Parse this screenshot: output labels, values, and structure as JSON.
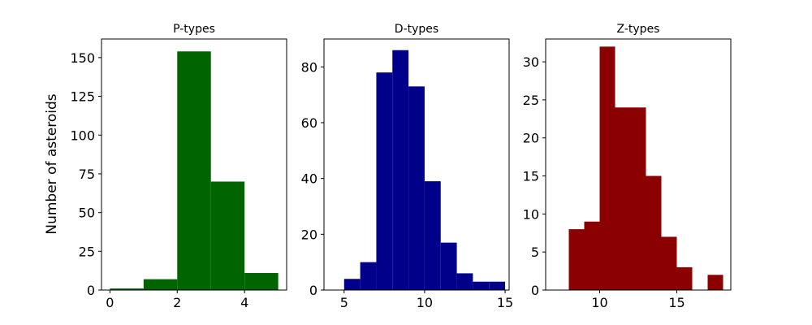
{
  "figure": {
    "ylabel": "Number of asteroids"
  },
  "chart_data": [
    {
      "type": "bar",
      "title": "P-types",
      "xlabel": "",
      "ylabel": "Number of asteroids",
      "color": "#006400",
      "xlim": [
        -0.25,
        5.25
      ],
      "ylim": [
        0,
        162
      ],
      "xticks": [
        0,
        2,
        4
      ],
      "yticks": [
        0,
        25,
        50,
        75,
        100,
        125,
        150
      ],
      "bins": [
        {
          "x0": 0,
          "x1": 1,
          "value": 1
        },
        {
          "x0": 1,
          "x1": 2,
          "value": 7
        },
        {
          "x0": 2,
          "x1": 3,
          "value": 154
        },
        {
          "x0": 3,
          "x1": 4,
          "value": 70
        },
        {
          "x0": 4,
          "x1": 5,
          "value": 11
        }
      ]
    },
    {
      "type": "bar",
      "title": "D-types",
      "xlabel": "",
      "ylabel": "",
      "color": "#00008b",
      "xlim": [
        3.75,
        15.25
      ],
      "ylim": [
        0,
        90
      ],
      "xticks": [
        5,
        10,
        15
      ],
      "yticks": [
        0,
        20,
        40,
        60,
        80
      ],
      "bins": [
        {
          "x0": 5,
          "x1": 6,
          "value": 4
        },
        {
          "x0": 6,
          "x1": 7,
          "value": 10
        },
        {
          "x0": 7,
          "x1": 8,
          "value": 78
        },
        {
          "x0": 8,
          "x1": 9,
          "value": 86
        },
        {
          "x0": 9,
          "x1": 10,
          "value": 73
        },
        {
          "x0": 10,
          "x1": 11,
          "value": 39
        },
        {
          "x0": 11,
          "x1": 12,
          "value": 17
        },
        {
          "x0": 12,
          "x1": 13,
          "value": 6
        },
        {
          "x0": 13,
          "x1": 14,
          "value": 3
        },
        {
          "x0": 14,
          "x1": 15,
          "value": 3
        }
      ]
    },
    {
      "type": "bar",
      "title": "Z-types",
      "xlabel": "",
      "ylabel": "",
      "color": "#8b0000",
      "xlim": [
        6.5,
        18.5
      ],
      "ylim": [
        0,
        33
      ],
      "xticks": [
        10,
        15
      ],
      "yticks": [
        0,
        5,
        10,
        15,
        20,
        25,
        30
      ],
      "bins": [
        {
          "x0": 8,
          "x1": 9,
          "value": 8
        },
        {
          "x0": 9,
          "x1": 10,
          "value": 9
        },
        {
          "x0": 10,
          "x1": 11,
          "value": 32
        },
        {
          "x0": 11,
          "x1": 12,
          "value": 24
        },
        {
          "x0": 12,
          "x1": 13,
          "value": 24
        },
        {
          "x0": 13,
          "x1": 14,
          "value": 15
        },
        {
          "x0": 14,
          "x1": 15,
          "value": 7
        },
        {
          "x0": 15,
          "x1": 16,
          "value": 3
        },
        {
          "x0": 16,
          "x1": 17,
          "value": 0
        },
        {
          "x0": 17,
          "x1": 18,
          "value": 2
        }
      ]
    }
  ]
}
